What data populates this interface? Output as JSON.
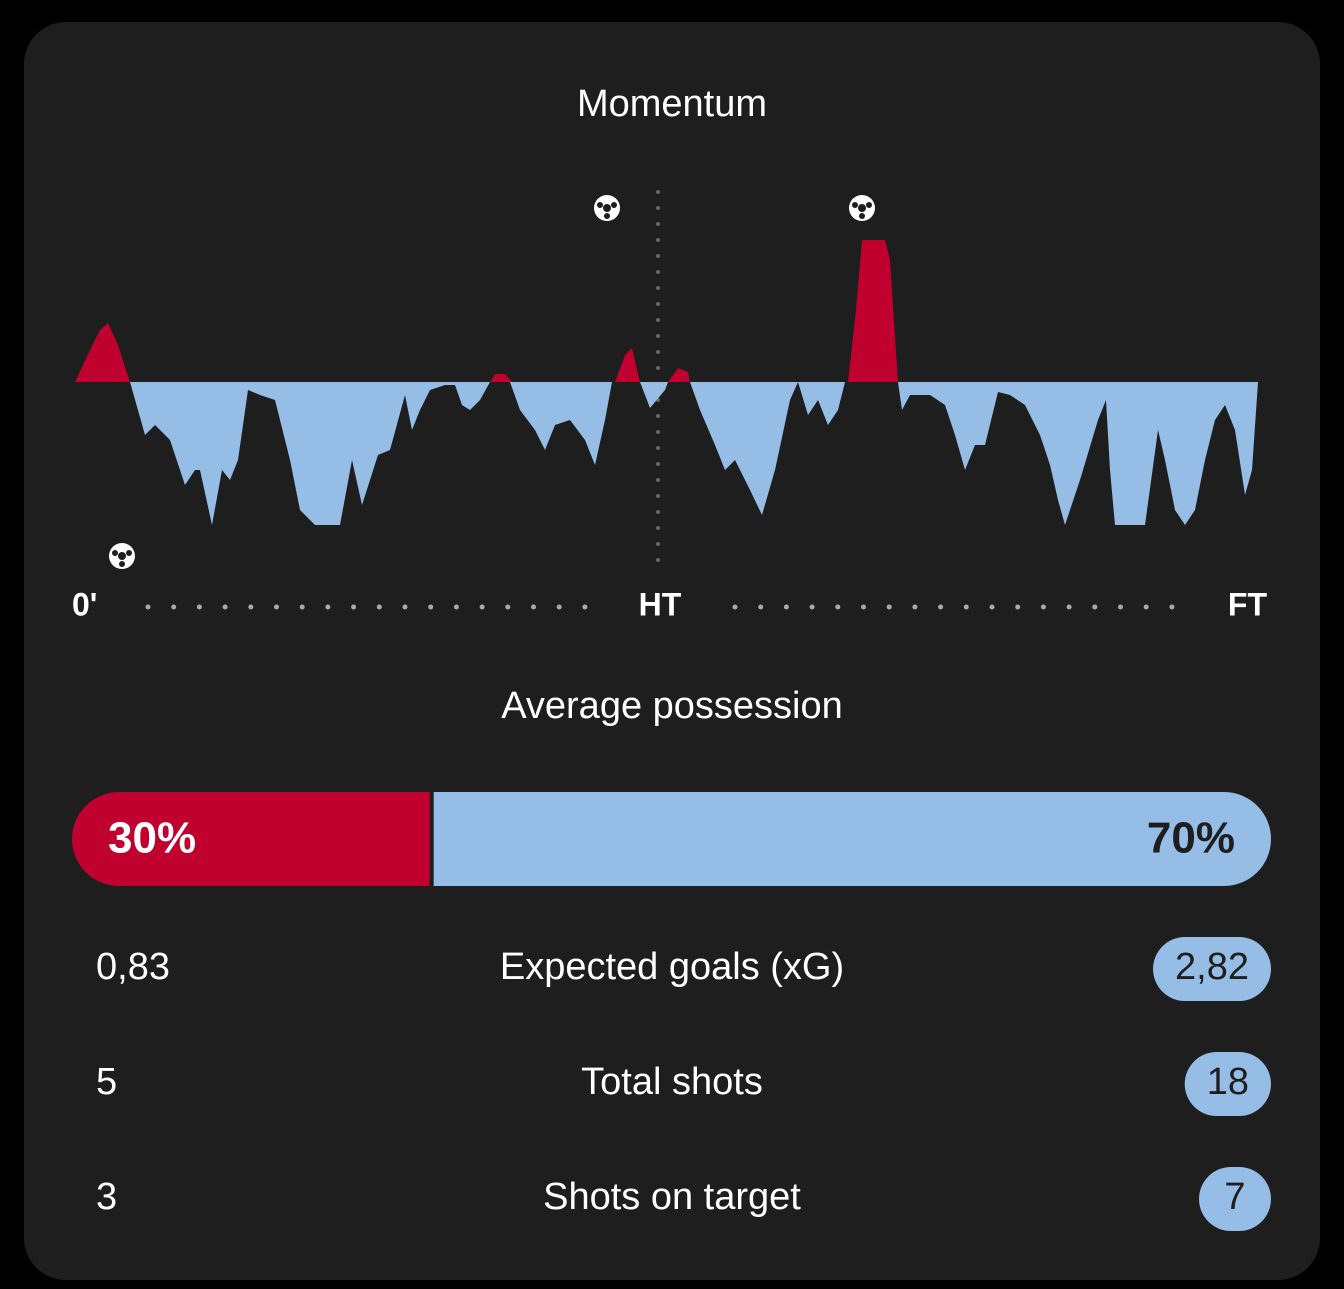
{
  "momentum": {
    "title": "Momentum",
    "axis_labels": [
      "0'",
      "HT",
      "FT"
    ]
  },
  "possession": {
    "title": "Average possession",
    "home": {
      "value": 30,
      "label": "30%"
    },
    "away": {
      "value": 70,
      "label": "70%"
    }
  },
  "stats": [
    {
      "label": "Expected goals (xG)",
      "home": "0,83",
      "away": "2,82"
    },
    {
      "label": "Total shots",
      "home": "5",
      "away": "18"
    },
    {
      "label": "Shots on target",
      "home": "3",
      "away": "7"
    }
  ]
}
